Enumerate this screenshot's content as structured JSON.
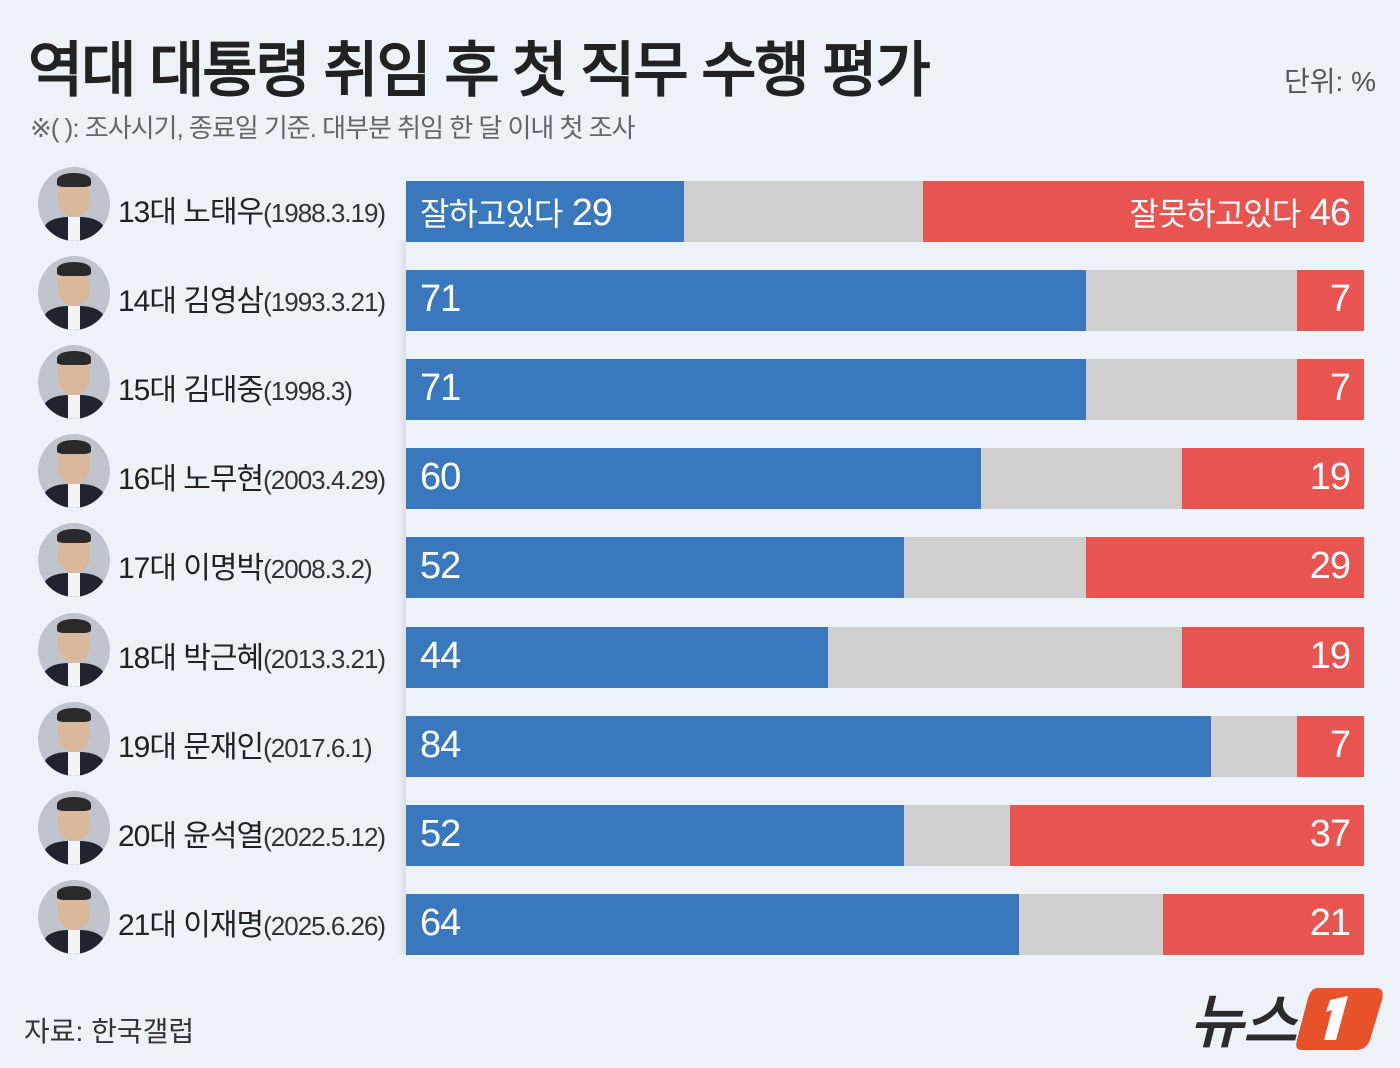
{
  "header": {
    "title": "역대 대통령 취임 후 첫 직무 수행 평가",
    "unit": "단위: %",
    "subtitle": "※( ): 조사시기, 종료일 기준. 대부분 취임 한 달 이내 첫 조사"
  },
  "footer": {
    "source": "자료: 한국갤럽",
    "logo": "뉴스1"
  },
  "colors": {
    "positive": "#3a78bd",
    "neutral": "#cfcfcf",
    "negative": "#e85550",
    "background": "#edf1f8"
  },
  "chart_data": {
    "type": "bar",
    "orientation": "horizontal",
    "stacked": true,
    "xlim": [
      0,
      100
    ],
    "grid": false,
    "positive_label": "잘하고있다",
    "negative_label": "잘못하고있다",
    "categories": [
      {
        "name": "13대 노태우",
        "date": "(1988.3.19)"
      },
      {
        "name": "14대 김영삼",
        "date": "(1993.3.21)"
      },
      {
        "name": "15대 김대중",
        "date": "(1998.3)"
      },
      {
        "name": "16대 노무현",
        "date": "(2003.4.29)"
      },
      {
        "name": "17대 이명박",
        "date": "(2008.3.2)"
      },
      {
        "name": "18대 박근혜",
        "date": "(2013.3.21)"
      },
      {
        "name": "19대 문재인",
        "date": "(2017.6.1)"
      },
      {
        "name": "20대 윤석열",
        "date": "(2022.5.12)"
      },
      {
        "name": "21대 이재명",
        "date": "(2025.6.26)"
      }
    ],
    "series": [
      {
        "name": "잘하고있다",
        "values": [
          29,
          71,
          71,
          60,
          52,
          44,
          84,
          52,
          64
        ]
      },
      {
        "name": "잘못하고있다",
        "values": [
          46,
          7,
          7,
          19,
          29,
          19,
          7,
          37,
          21
        ]
      }
    ]
  }
}
